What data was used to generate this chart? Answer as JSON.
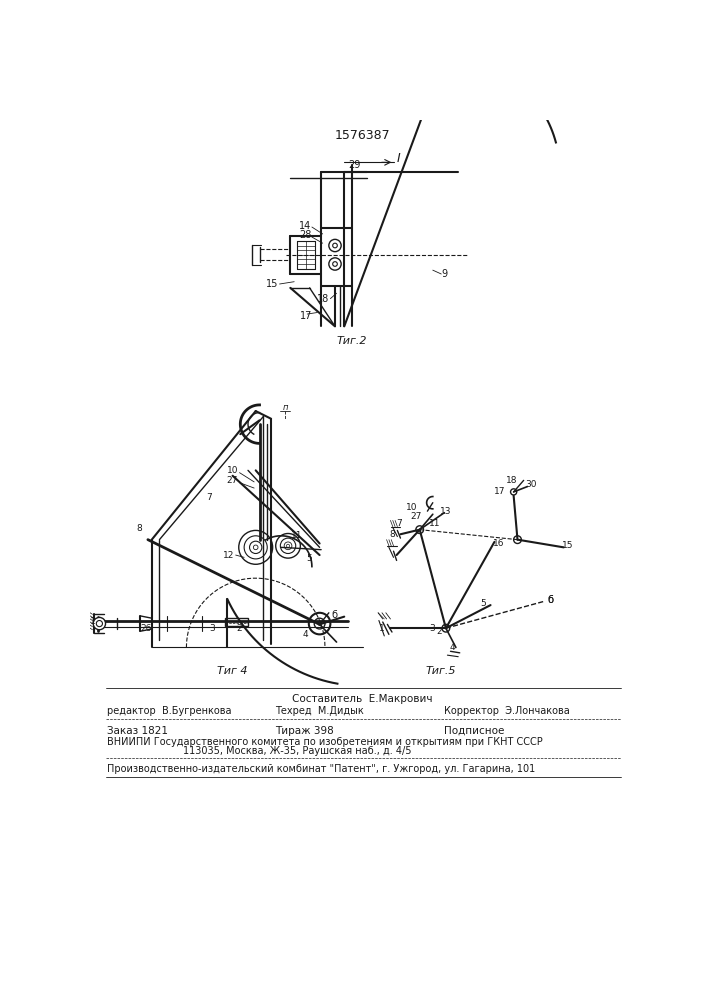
{
  "patent_number": "1576387",
  "bg_color": "#ffffff",
  "line_color": "#1a1a1a",
  "fig2_label": "Τиг.2",
  "fig4_label": "Τиг 4",
  "fig5_label": "Τиг.5"
}
